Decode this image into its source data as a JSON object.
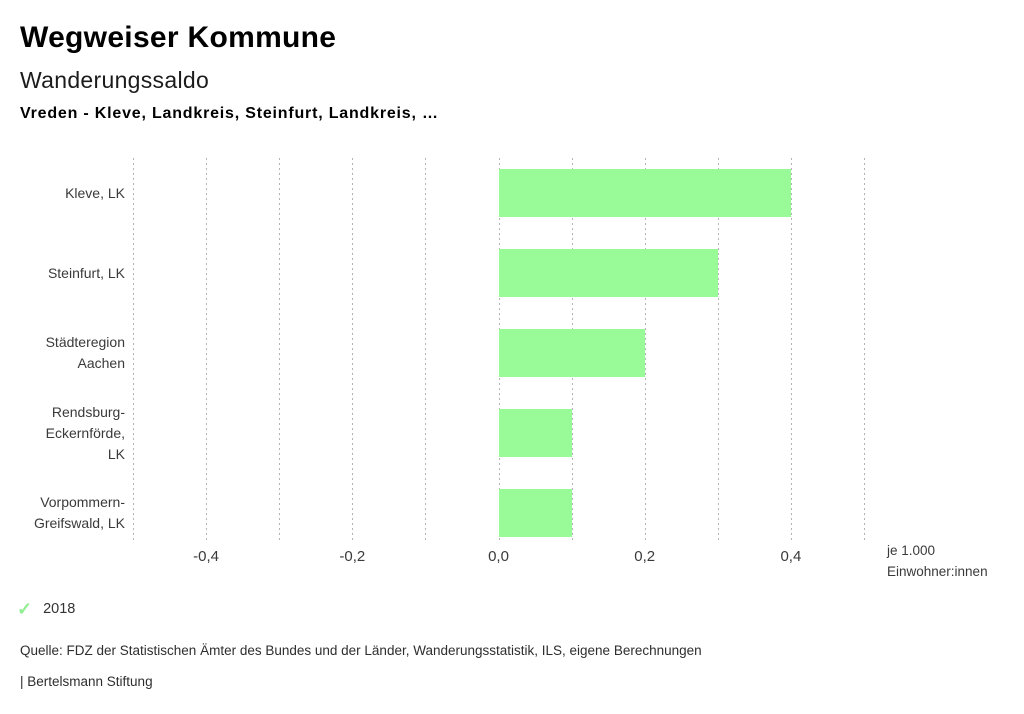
{
  "app_title": "Wegweiser Kommune",
  "chart_data": {
    "type": "bar",
    "orientation": "horizontal",
    "title": "Wanderungssaldo",
    "subtitle": "Vreden - Kleve, Landkreis, Steinfurt, Landkreis, …",
    "categories": [
      "Kleve, LK",
      "Steinfurt, LK",
      "Städteregion Aachen",
      "Rendsburg-Eckernförde, LK",
      "Vorpommern-Greifswald, LK"
    ],
    "category_lines": [
      [
        "Kleve, LK"
      ],
      [
        "Steinfurt, LK"
      ],
      [
        "Städteregion",
        "Aachen"
      ],
      [
        "Rendsburg-",
        "Eckernförde,",
        "LK"
      ],
      [
        "Vorpommern-",
        "Greifswald, LK"
      ]
    ],
    "series": [
      {
        "name": "2018",
        "values": [
          0.4,
          0.3,
          0.2,
          0.1,
          0.1
        ]
      }
    ],
    "xlim": [
      -0.5,
      0.5
    ],
    "gridline_step": 0.1,
    "grid": true,
    "x_tick_values": [
      -0.4,
      -0.2,
      0.0,
      0.2,
      0.4
    ],
    "x_tick_labels": [
      "-0,4",
      "-0,2",
      "0,0",
      "0,2",
      "0,4"
    ],
    "xlabel": "je 1.000 Einwohner:innen",
    "unit_label_lines": [
      "je 1.000",
      "Einwohner:innen"
    ],
    "ylabel": "",
    "legend_position": "bottom-left",
    "colors": {
      "bar": "#98fb98",
      "check": "#90ee90",
      "grid": "#b3b3b3"
    }
  },
  "legend": {
    "check_glyph": "✓",
    "entries": [
      {
        "label": "2018",
        "checked": true
      }
    ]
  },
  "footer": {
    "source": "Quelle: FDZ der Statistischen Ämter des Bundes und der Länder, Wanderungsstatistik, ILS, eigene Berechnungen",
    "branding": "| Bertelsmann Stiftung"
  }
}
